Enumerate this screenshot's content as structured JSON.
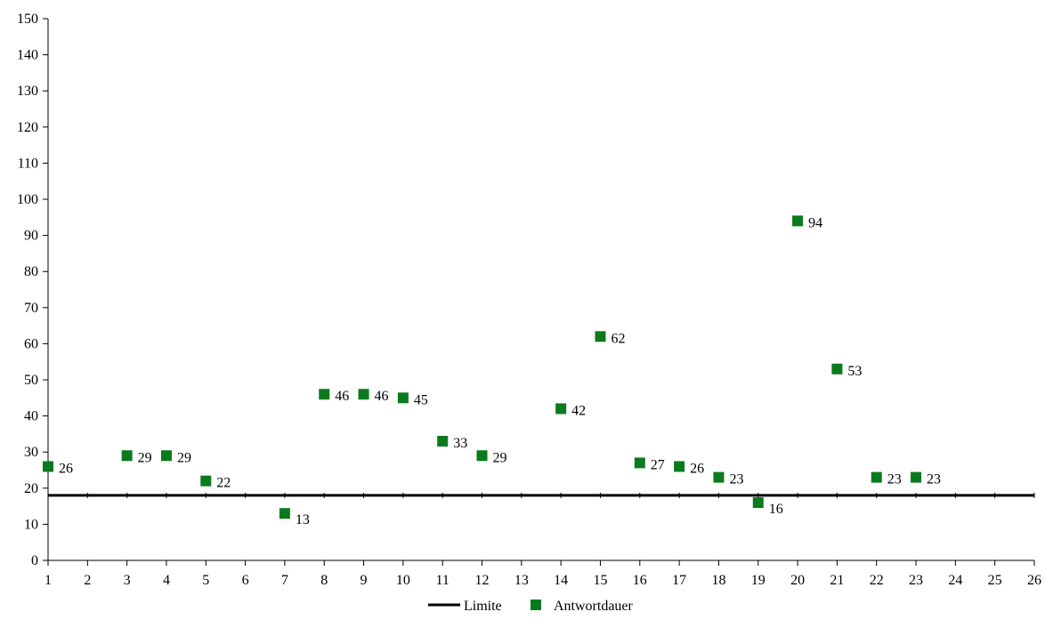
{
  "chart_data": {
    "type": "scatter",
    "xlim": [
      1,
      26
    ],
    "ylim": [
      0,
      150
    ],
    "x_ticks": [
      1,
      2,
      3,
      4,
      5,
      6,
      7,
      8,
      9,
      10,
      11,
      12,
      13,
      14,
      15,
      16,
      17,
      18,
      19,
      20,
      21,
      22,
      23,
      24,
      25,
      26
    ],
    "y_ticks": [
      0,
      10,
      20,
      30,
      40,
      50,
      60,
      70,
      80,
      90,
      100,
      110,
      120,
      130,
      140,
      150
    ],
    "grid": false,
    "legend_position": "bottom-center",
    "limit": {
      "name": "Limite",
      "value": 18,
      "color": "#000000"
    },
    "series": [
      {
        "name": "Antwortdauer",
        "color": "#0a7a1c",
        "marker": "square",
        "points": [
          {
            "x": 1,
            "y": 26
          },
          {
            "x": 3,
            "y": 29
          },
          {
            "x": 4,
            "y": 29
          },
          {
            "x": 5,
            "y": 22
          },
          {
            "x": 7,
            "y": 13
          },
          {
            "x": 8,
            "y": 46
          },
          {
            "x": 9,
            "y": 46
          },
          {
            "x": 10,
            "y": 45
          },
          {
            "x": 11,
            "y": 33
          },
          {
            "x": 12,
            "y": 29
          },
          {
            "x": 14,
            "y": 42
          },
          {
            "x": 15,
            "y": 62
          },
          {
            "x": 16,
            "y": 27
          },
          {
            "x": 17,
            "y": 26
          },
          {
            "x": 18,
            "y": 23
          },
          {
            "x": 19,
            "y": 16
          },
          {
            "x": 20,
            "y": 94
          },
          {
            "x": 21,
            "y": 53
          },
          {
            "x": 22,
            "y": 23
          },
          {
            "x": 23,
            "y": 23
          }
        ]
      }
    ]
  }
}
